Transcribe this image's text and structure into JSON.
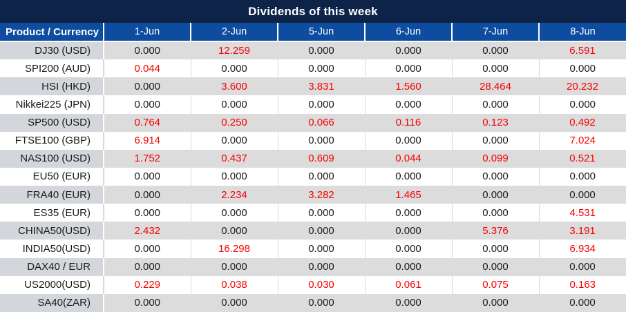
{
  "title": "Dividends of this week",
  "table": {
    "header": {
      "product_col": "Product / Currency",
      "dates": [
        "1-Jun",
        "2-Jun",
        "5-Jun",
        "6-Jun",
        "7-Jun",
        "8-Jun"
      ]
    },
    "rows": [
      {
        "product": "DJ30 (USD)",
        "values": [
          "0.000",
          "12.259",
          "0.000",
          "0.000",
          "0.000",
          "6.591"
        ]
      },
      {
        "product": "SPI200 (AUD)",
        "values": [
          "0.044",
          "0.000",
          "0.000",
          "0.000",
          "0.000",
          "0.000"
        ]
      },
      {
        "product": "HSI (HKD)",
        "values": [
          "0.000",
          "3.600",
          "3.831",
          "1.560",
          "28.464",
          "20.232"
        ]
      },
      {
        "product": "Nikkei225 (JPN)",
        "values": [
          "0.000",
          "0.000",
          "0.000",
          "0.000",
          "0.000",
          "0.000"
        ]
      },
      {
        "product": "SP500 (USD)",
        "values": [
          "0.764",
          "0.250",
          "0.066",
          "0.116",
          "0.123",
          "0.492"
        ]
      },
      {
        "product": "FTSE100 (GBP)",
        "values": [
          "6.914",
          "0.000",
          "0.000",
          "0.000",
          "0.000",
          "7.024"
        ]
      },
      {
        "product": "NAS100 (USD)",
        "values": [
          "1.752",
          "0.437",
          "0.609",
          "0.044",
          "0.099",
          "0.521"
        ]
      },
      {
        "product": "EU50 (EUR)",
        "values": [
          "0.000",
          "0.000",
          "0.000",
          "0.000",
          "0.000",
          "0.000"
        ]
      },
      {
        "product": "FRA40 (EUR)",
        "values": [
          "0.000",
          "2.234",
          "3.282",
          "1.465",
          "0.000",
          "0.000"
        ]
      },
      {
        "product": "ES35 (EUR)",
        "values": [
          "0.000",
          "0.000",
          "0.000",
          "0.000",
          "0.000",
          "4.531"
        ]
      },
      {
        "product": "CHINA50(USD)",
        "values": [
          "2.432",
          "0.000",
          "0.000",
          "0.000",
          "5.376",
          "3.191"
        ]
      },
      {
        "product": "INDIA50(USD)",
        "values": [
          "0.000",
          "16.298",
          "0.000",
          "0.000",
          "0.000",
          "6.934"
        ]
      },
      {
        "product": "DAX40 / EUR",
        "values": [
          "0.000",
          "0.000",
          "0.000",
          "0.000",
          "0.000",
          "0.000"
        ]
      },
      {
        "product": "US2000(USD)",
        "values": [
          "0.229",
          "0.038",
          "0.030",
          "0.061",
          "0.075",
          "0.163"
        ]
      },
      {
        "product": "SA40(ZAR)",
        "values": [
          "0.000",
          "0.000",
          "0.000",
          "0.000",
          "0.000",
          "0.000"
        ]
      }
    ]
  },
  "colors": {
    "title_bg": "#0d2347",
    "header_bg": "#0e4c9f",
    "row_alt_bg": "#dcdcdc",
    "grid_line": "#d9d9d9",
    "zero_text": "#1a1a1a",
    "dividend_text": "#f80000"
  }
}
